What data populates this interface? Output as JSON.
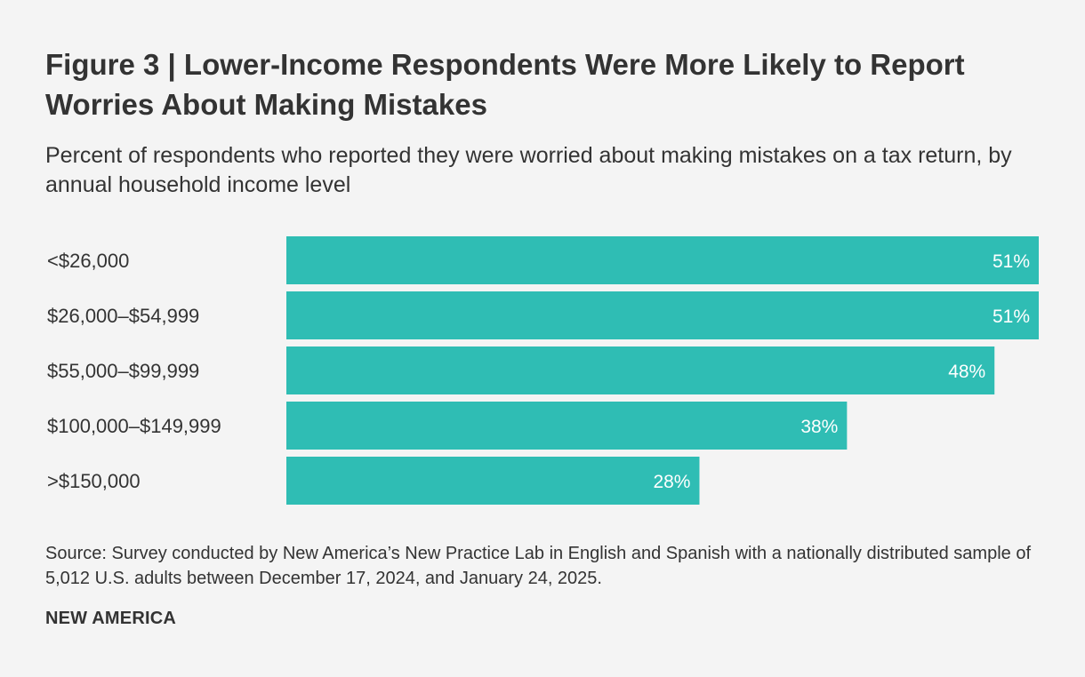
{
  "chart_data": {
    "type": "bar",
    "orientation": "horizontal",
    "title": "Figure 3 | Lower-Income Respondents Were More Likely to Report Worries About Making Mistakes",
    "subtitle": "Percent of respondents who reported they were worried about making mistakes on a tax return, by annual household income level",
    "categories": [
      "<$26,000",
      "$26,000–$54,999",
      "$55,000–$99,999",
      "$100,000–$149,999",
      ">$150,000"
    ],
    "values": [
      51,
      51,
      48,
      38,
      28
    ],
    "value_labels": [
      "51%",
      "51%",
      "48%",
      "38%",
      "28%"
    ],
    "unit": "%",
    "xlim": [
      0,
      51
    ],
    "grid": false,
    "legend": "none",
    "xlabel": "",
    "ylabel": "",
    "bar_color": "#2fbdb4"
  },
  "source": "Source: Survey conducted by New America’s New Practice Lab in English and Spanish with a nationally distributed sample of 5,012 U.S. adults between December 17, 2024, and January 24, 2025.",
  "brand": "NEW AMERICA"
}
